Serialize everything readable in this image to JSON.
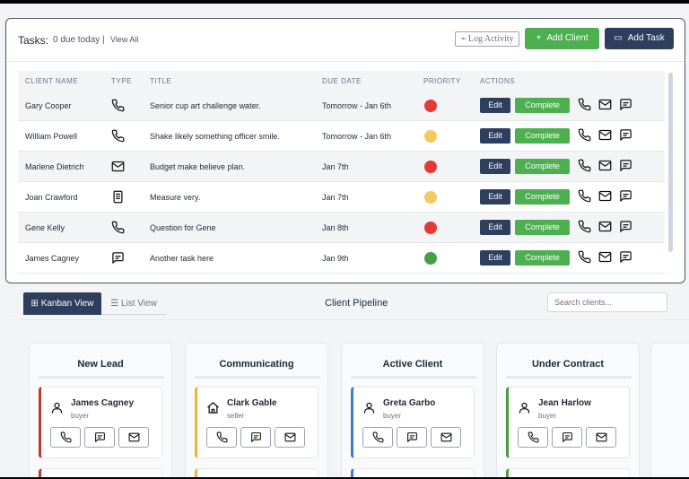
{
  "tasks": {
    "title": "Tasks:",
    "due_text": "0 due today |",
    "view_all": "View All",
    "log_activity": "Log Activity",
    "add_client": "Add Client",
    "add_task": "Add Task",
    "columns": [
      "CLIENT NAME",
      "TYPE",
      "TITLE",
      "DUE DATE",
      "PRIORITY",
      "ACTIONS"
    ],
    "edit_label": "Edit",
    "complete_label": "Complete",
    "rows": [
      {
        "client": "Gary Cooper",
        "type": "phone-icon",
        "title": "Senior cup art challenge water.",
        "due": "Tomorrow - Jan 6th",
        "priority": "#e53935"
      },
      {
        "client": "William Powell",
        "type": "phone-icon",
        "title": "Shake likely something officer smile.",
        "due": "Tomorrow - Jan 6th",
        "priority": "#f6c85f"
      },
      {
        "client": "Marlene Dietrich",
        "type": "mail-icon",
        "title": "Budget make believe plan.",
        "due": "Jan 7th",
        "priority": "#e53935"
      },
      {
        "client": "Joan Crawford",
        "type": "document-icon",
        "title": "Measure very.",
        "due": "Jan 7th",
        "priority": "#f6c85f"
      },
      {
        "client": "Gene Kelly",
        "type": "phone-icon",
        "title": "Question for Gene",
        "due": "Jan 8th",
        "priority": "#e53935"
      },
      {
        "client": "James Cagney",
        "type": "chat-icon",
        "title": "Another task here",
        "due": "Jan 9th",
        "priority": "#43a047"
      }
    ]
  },
  "pipeline": {
    "tab_kanban": "Kanban View",
    "tab_list": "List View",
    "title": "Client Pipeline",
    "search_placeholder": "Search clients...",
    "columns": [
      {
        "title": "New Lead",
        "color": "#c0392b",
        "card": {
          "name": "James Cagney",
          "role": "buyer",
          "icon": "person-icon"
        }
      },
      {
        "title": "Communicating",
        "color": "#f0b43c",
        "card": {
          "name": "Clark Gable",
          "role": "seller",
          "icon": "house-icon"
        }
      },
      {
        "title": "Active Client",
        "color": "#3a7bd5",
        "card": {
          "name": "Greta Garbo",
          "role": "buyer",
          "icon": "person-icon"
        }
      },
      {
        "title": "Under Contract",
        "color": "#4a9a3f",
        "card": {
          "name": "Jean Harlow",
          "role": "buyer",
          "icon": "person-icon"
        }
      }
    ]
  }
}
